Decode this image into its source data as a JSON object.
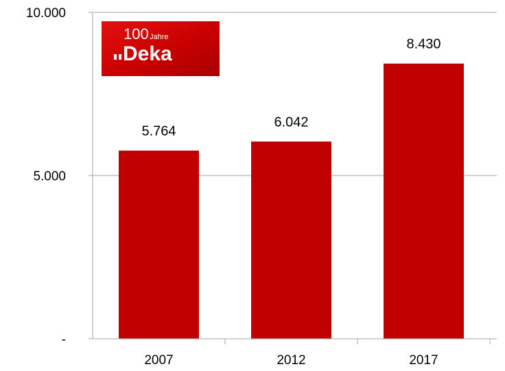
{
  "chart_data": {
    "type": "bar",
    "categories": [
      "2007",
      "2012",
      "2017"
    ],
    "values": [
      5764,
      6042,
      8430
    ],
    "data_labels": [
      "5.764",
      "6.042",
      "8.430"
    ],
    "ylim": [
      0,
      10000
    ],
    "y_ticks": [
      {
        "value": 0,
        "label": "-"
      },
      {
        "value": 5000,
        "label": "5.000"
      },
      {
        "value": 10000,
        "label": "10.000"
      }
    ],
    "grid": true,
    "bar_color": "#c00000",
    "grid_color": "#a6a6a6",
    "title": "",
    "xlabel": "",
    "ylabel": ""
  },
  "logo": {
    "number": "100",
    "word_small": "Jahre",
    "brand": "Deka",
    "bg_color": "#d40000"
  }
}
